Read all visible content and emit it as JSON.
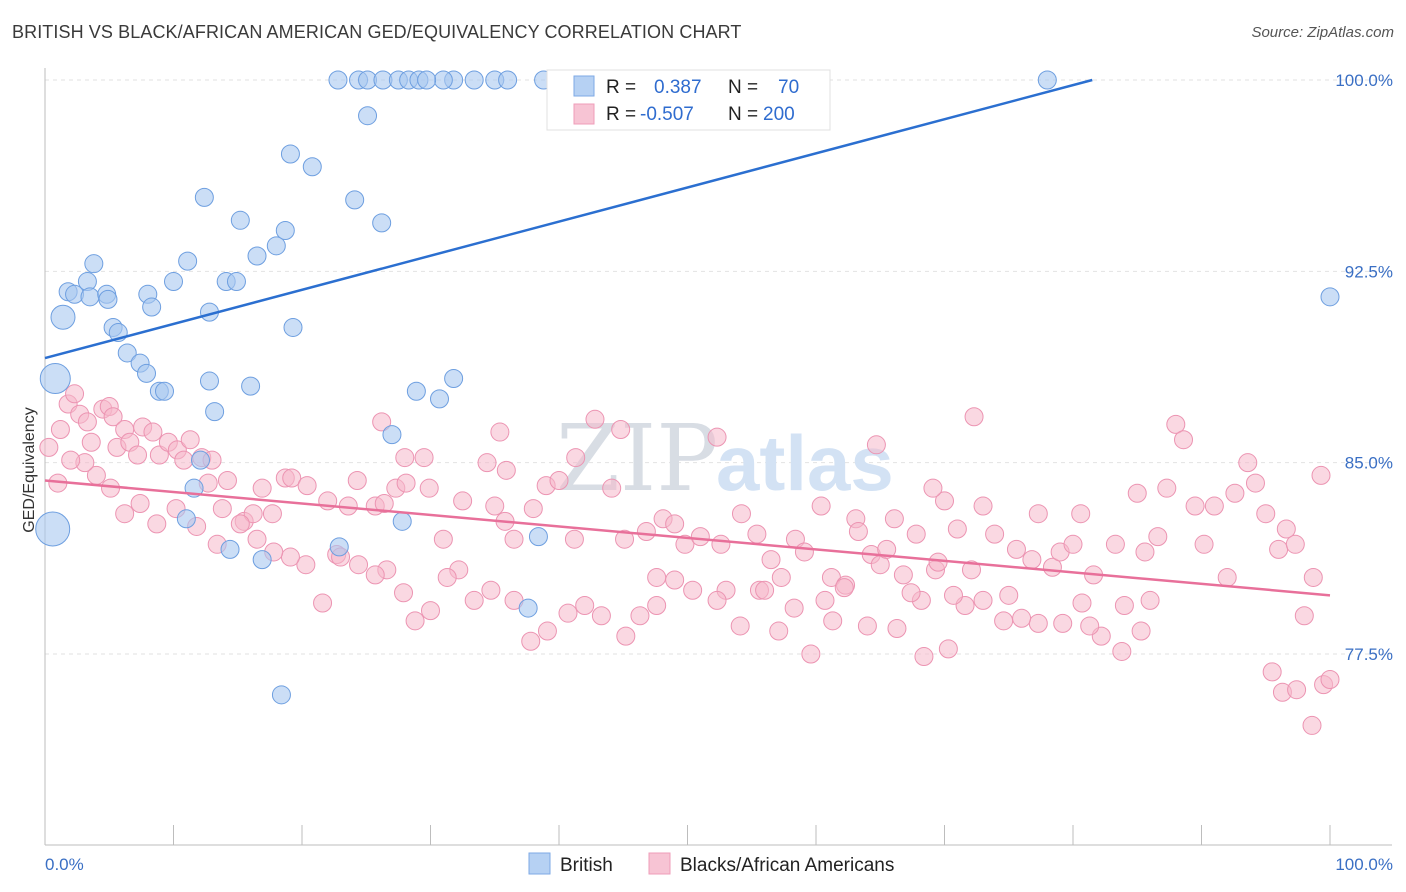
{
  "header": {
    "title": "BRITISH VS BLACK/AFRICAN AMERICAN GED/EQUIVALENCY CORRELATION CHART",
    "source": "Source: ZipAtlas.com"
  },
  "watermark": {
    "zip": "ZIP",
    "atlas": "atlas"
  },
  "legend": {
    "british": {
      "r_label": "R =",
      "r_value": "0.387",
      "n_label": "N =",
      "n_value": "70"
    },
    "black": {
      "r_label": "R =",
      "r_value": "-0.507",
      "n_label": "N =",
      "n_value": "200"
    }
  },
  "bottom_legend": {
    "british": "British",
    "black": "Blacks/African Americans"
  },
  "chart_data": {
    "type": "scatter",
    "title": "BRITISH VS BLACK/AFRICAN AMERICAN GED/EQUIVALENCY CORRELATION CHART",
    "xlabel": "",
    "ylabel": "GED/Equivalency",
    "xlim": [
      0,
      100
    ],
    "ylim": [
      71.5,
      100.5
    ],
    "x_tick_labels": [
      "0.0%",
      "100.0%"
    ],
    "y_ticks": [
      77.5,
      85.0,
      92.5,
      100.0
    ],
    "y_tick_labels": [
      "77.5%",
      "85.0%",
      "92.5%",
      "100.0%"
    ],
    "grid": true,
    "legend_position": "top-center",
    "colors": {
      "british": "#a8c8f0",
      "british_line": "#2b6fd0",
      "black": "#f5b8cb",
      "black_line": "#e8709a"
    },
    "series": [
      {
        "name": "British",
        "trend": {
          "x": [
            0,
            81.5
          ],
          "y": [
            89.1,
            100.0
          ]
        },
        "points": [
          [
            22.8,
            100
          ],
          [
            24.4,
            100
          ],
          [
            25.1,
            100
          ],
          [
            26.3,
            100
          ],
          [
            27.5,
            100
          ],
          [
            28.3,
            100
          ],
          [
            29.1,
            100
          ],
          [
            31.8,
            100
          ],
          [
            33.4,
            100
          ],
          [
            35.0,
            100
          ],
          [
            36.0,
            100
          ],
          [
            38.8,
            100
          ],
          [
            42.5,
            100
          ],
          [
            47.5,
            100
          ],
          [
            78.0,
            100
          ],
          [
            25.1,
            98.6
          ],
          [
            19.1,
            97.1
          ],
          [
            20.8,
            96.6
          ],
          [
            12.4,
            95.4
          ],
          [
            24.1,
            95.3
          ],
          [
            15.2,
            94.5
          ],
          [
            26.2,
            94.4
          ],
          [
            18.7,
            94.1
          ],
          [
            18.0,
            93.5
          ],
          [
            16.5,
            93.1
          ],
          [
            3.8,
            92.8
          ],
          [
            11.1,
            92.9
          ],
          [
            3.3,
            92.1
          ],
          [
            10.0,
            92.1
          ],
          [
            14.1,
            92.1
          ],
          [
            14.9,
            92.1
          ],
          [
            1.8,
            91.7
          ],
          [
            2.3,
            91.6
          ],
          [
            3.5,
            91.5
          ],
          [
            4.8,
            91.6
          ],
          [
            4.9,
            91.4
          ],
          [
            8.0,
            91.6
          ],
          [
            8.3,
            91.1
          ],
          [
            12.8,
            90.9
          ],
          [
            1.4,
            90.7
          ],
          [
            5.3,
            90.3
          ],
          [
            5.7,
            90.1
          ],
          [
            19.3,
            90.3
          ],
          [
            6.4,
            89.3
          ],
          [
            7.4,
            88.9
          ],
          [
            7.9,
            88.5
          ],
          [
            0.8,
            88.3
          ],
          [
            12.8,
            88.2
          ],
          [
            8.9,
            87.8
          ],
          [
            9.3,
            87.8
          ],
          [
            16.0,
            88.0
          ],
          [
            28.9,
            87.8
          ],
          [
            30.7,
            87.5
          ],
          [
            31.8,
            88.3
          ],
          [
            13.2,
            87.0
          ],
          [
            27.0,
            86.1
          ],
          [
            12.1,
            85.1
          ],
          [
            11.6,
            84.0
          ],
          [
            11.0,
            82.8
          ],
          [
            27.8,
            82.7
          ],
          [
            38.4,
            82.1
          ],
          [
            22.9,
            81.7
          ],
          [
            14.4,
            81.6
          ],
          [
            16.9,
            81.2
          ],
          [
            37.6,
            79.3
          ],
          [
            18.4,
            75.9
          ],
          [
            100.0,
            91.5
          ],
          [
            0.6,
            82.4
          ],
          [
            31.0,
            100
          ],
          [
            29.7,
            100
          ]
        ],
        "sizes": {
          "0.8,88.3": 30,
          "0.6,82.4": 34,
          "1.4,90.7": 24
        }
      },
      {
        "name": "Blacks/African Americans",
        "trend": {
          "x": [
            0,
            100
          ],
          "y": [
            84.3,
            79.8
          ]
        },
        "points": [
          [
            0.3,
            85.6
          ],
          [
            1.2,
            86.3
          ],
          [
            1.8,
            87.3
          ],
          [
            2.3,
            87.7
          ],
          [
            2.7,
            86.9
          ],
          [
            3.3,
            86.6
          ],
          [
            3.6,
            85.8
          ],
          [
            4.5,
            87.1
          ],
          [
            5.0,
            87.2
          ],
          [
            5.3,
            86.8
          ],
          [
            5.6,
            85.6
          ],
          [
            6.2,
            86.3
          ],
          [
            6.6,
            85.8
          ],
          [
            7.2,
            85.3
          ],
          [
            7.6,
            86.4
          ],
          [
            8.4,
            86.2
          ],
          [
            8.9,
            85.3
          ],
          [
            9.6,
            85.8
          ],
          [
            10.3,
            85.5
          ],
          [
            10.8,
            85.1
          ],
          [
            11.3,
            85.9
          ],
          [
            12.2,
            85.2
          ],
          [
            12.7,
            84.2
          ],
          [
            13.0,
            85.1
          ],
          [
            14.2,
            84.3
          ],
          [
            13.8,
            83.2
          ],
          [
            15.5,
            82.7
          ],
          [
            16.2,
            83.0
          ],
          [
            16.9,
            84.0
          ],
          [
            17.7,
            83.0
          ],
          [
            18.7,
            84.4
          ],
          [
            19.2,
            84.4
          ],
          [
            20.4,
            84.1
          ],
          [
            22.0,
            83.5
          ],
          [
            22.7,
            81.4
          ],
          [
            23.6,
            83.3
          ],
          [
            24.3,
            84.3
          ],
          [
            25.7,
            83.3
          ],
          [
            26.4,
            83.4
          ],
          [
            27.3,
            84.0
          ],
          [
            28.0,
            85.2
          ],
          [
            29.5,
            85.2
          ],
          [
            29.9,
            84.0
          ],
          [
            31.0,
            82.0
          ],
          [
            32.5,
            83.5
          ],
          [
            34.4,
            85.0
          ],
          [
            35.0,
            83.3
          ],
          [
            35.8,
            82.7
          ],
          [
            36.5,
            82.0
          ],
          [
            38.0,
            83.2
          ],
          [
            39.0,
            84.1
          ],
          [
            40.0,
            84.3
          ],
          [
            41.2,
            82.0
          ],
          [
            42.8,
            86.7
          ],
          [
            44.1,
            84.0
          ],
          [
            44.8,
            86.3
          ],
          [
            45.1,
            82.0
          ],
          [
            46.8,
            82.3
          ],
          [
            47.6,
            80.5
          ],
          [
            48.1,
            82.8
          ],
          [
            49.0,
            82.6
          ],
          [
            49.8,
            81.8
          ],
          [
            51.0,
            82.1
          ],
          [
            52.6,
            81.8
          ],
          [
            53.0,
            80.0
          ],
          [
            54.2,
            83.0
          ],
          [
            55.4,
            82.2
          ],
          [
            56.5,
            81.2
          ],
          [
            57.3,
            80.5
          ],
          [
            58.4,
            82.0
          ],
          [
            59.1,
            81.5
          ],
          [
            60.4,
            83.3
          ],
          [
            61.2,
            80.5
          ],
          [
            62.3,
            80.2
          ],
          [
            63.1,
            82.8
          ],
          [
            64.3,
            81.4
          ],
          [
            65.0,
            81.0
          ],
          [
            66.1,
            82.8
          ],
          [
            66.8,
            80.6
          ],
          [
            67.8,
            82.2
          ],
          [
            68.2,
            79.6
          ],
          [
            69.3,
            80.8
          ],
          [
            70.0,
            83.5
          ],
          [
            71.0,
            82.4
          ],
          [
            72.1,
            80.8
          ],
          [
            73.0,
            83.3
          ],
          [
            73.9,
            82.2
          ],
          [
            75.0,
            79.8
          ],
          [
            75.6,
            81.6
          ],
          [
            76.8,
            81.2
          ],
          [
            77.3,
            83.0
          ],
          [
            78.4,
            80.9
          ],
          [
            79.0,
            81.5
          ],
          [
            80.0,
            81.8
          ],
          [
            80.6,
            83.0
          ],
          [
            81.6,
            80.6
          ],
          [
            82.2,
            78.2
          ],
          [
            83.3,
            81.8
          ],
          [
            84.0,
            79.4
          ],
          [
            85.0,
            83.8
          ],
          [
            85.6,
            81.5
          ],
          [
            86.6,
            82.1
          ],
          [
            87.3,
            84.0
          ],
          [
            88.0,
            86.5
          ],
          [
            88.6,
            85.9
          ],
          [
            89.5,
            83.3
          ],
          [
            90.2,
            81.8
          ],
          [
            91.0,
            83.3
          ],
          [
            92.0,
            80.5
          ],
          [
            92.6,
            83.8
          ],
          [
            93.6,
            85.0
          ],
          [
            94.2,
            84.2
          ],
          [
            95.0,
            83.0
          ],
          [
            96.0,
            81.6
          ],
          [
            96.6,
            82.4
          ],
          [
            97.3,
            81.8
          ],
          [
            98.0,
            79.0
          ],
          [
            98.7,
            80.5
          ],
          [
            99.3,
            84.5
          ],
          [
            95.5,
            76.8
          ],
          [
            96.3,
            76.0
          ],
          [
            97.4,
            76.1
          ],
          [
            98.6,
            74.7
          ],
          [
            99.5,
            76.3
          ],
          [
            100.0,
            76.5
          ],
          [
            26.2,
            86.6
          ],
          [
            28.1,
            84.2
          ],
          [
            35.9,
            84.7
          ],
          [
            35.4,
            86.2
          ],
          [
            41.3,
            85.2
          ],
          [
            52.3,
            86.0
          ],
          [
            64.7,
            85.7
          ],
          [
            69.1,
            84.0
          ],
          [
            72.3,
            86.8
          ],
          [
            86.0,
            79.6
          ],
          [
            85.3,
            78.4
          ],
          [
            83.8,
            77.6
          ],
          [
            81.3,
            78.6
          ],
          [
            79.2,
            78.7
          ],
          [
            77.3,
            78.7
          ],
          [
            74.6,
            78.8
          ],
          [
            73.0,
            79.6
          ],
          [
            71.6,
            79.4
          ],
          [
            70.3,
            77.7
          ],
          [
            68.4,
            77.4
          ],
          [
            66.3,
            78.5
          ],
          [
            64.0,
            78.6
          ],
          [
            61.3,
            78.8
          ],
          [
            59.6,
            77.5
          ],
          [
            57.1,
            78.4
          ],
          [
            55.6,
            80.0
          ],
          [
            54.1,
            78.6
          ],
          [
            52.3,
            79.6
          ],
          [
            50.4,
            80.0
          ],
          [
            49.0,
            80.4
          ],
          [
            47.6,
            79.4
          ],
          [
            46.3,
            79.0
          ],
          [
            45.2,
            78.2
          ],
          [
            43.3,
            79.0
          ],
          [
            42.0,
            79.4
          ],
          [
            40.7,
            79.1
          ],
          [
            39.1,
            78.4
          ],
          [
            37.8,
            78.0
          ],
          [
            36.5,
            79.6
          ],
          [
            34.7,
            80.0
          ],
          [
            33.4,
            79.6
          ],
          [
            32.2,
            80.8
          ],
          [
            31.3,
            80.5
          ],
          [
            30.0,
            79.2
          ],
          [
            28.8,
            78.8
          ],
          [
            27.9,
            79.9
          ],
          [
            26.6,
            80.8
          ],
          [
            25.7,
            80.6
          ],
          [
            24.4,
            81.0
          ],
          [
            23.0,
            81.3
          ],
          [
            21.6,
            79.5
          ],
          [
            20.3,
            81.0
          ],
          [
            19.1,
            81.3
          ],
          [
            17.8,
            81.5
          ],
          [
            16.5,
            82.0
          ],
          [
            15.2,
            82.6
          ],
          [
            13.4,
            81.8
          ],
          [
            11.8,
            82.5
          ],
          [
            10.2,
            83.2
          ],
          [
            8.7,
            82.6
          ],
          [
            7.4,
            83.4
          ],
          [
            6.2,
            83.0
          ],
          [
            5.1,
            84.0
          ],
          [
            4.0,
            84.5
          ],
          [
            3.1,
            85.0
          ],
          [
            2.0,
            85.1
          ],
          [
            1.0,
            84.2
          ],
          [
            56.0,
            80.0
          ],
          [
            58.3,
            79.3
          ],
          [
            63.3,
            82.3
          ],
          [
            67.4,
            79.9
          ],
          [
            70.7,
            79.8
          ],
          [
            76.0,
            78.9
          ],
          [
            80.7,
            79.5
          ],
          [
            60.7,
            79.6
          ],
          [
            62.2,
            80.1
          ],
          [
            65.5,
            81.6
          ],
          [
            69.5,
            81.1
          ]
        ]
      }
    ]
  }
}
